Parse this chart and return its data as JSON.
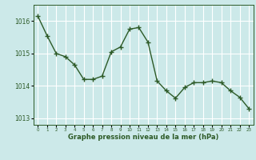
{
  "x": [
    0,
    1,
    2,
    3,
    4,
    5,
    6,
    7,
    8,
    9,
    10,
    11,
    12,
    13,
    14,
    15,
    16,
    17,
    18,
    19,
    20,
    21,
    22,
    23
  ],
  "y": [
    1016.15,
    1015.55,
    1015.0,
    1014.9,
    1014.65,
    1014.2,
    1014.2,
    1014.3,
    1015.05,
    1015.2,
    1015.75,
    1015.8,
    1015.35,
    1014.15,
    1013.85,
    1013.62,
    1013.95,
    1014.1,
    1014.1,
    1014.15,
    1014.1,
    1013.85,
    1013.65,
    1013.3
  ],
  "line_color": "#2d5a27",
  "marker_color": "#2d5a27",
  "bg_color": "#cce9e9",
  "grid_color": "#ffffff",
  "tick_label_color": "#2d5a27",
  "xlabel": "Graphe pression niveau de la mer (hPa)",
  "xlabel_color": "#2d5a27",
  "ylim": [
    1012.8,
    1016.5
  ],
  "yticks": [
    1013,
    1014,
    1015,
    1016
  ],
  "xlim": [
    -0.5,
    23.5
  ],
  "grid_major_color": "#ccdddd",
  "grid_minor_color": "#ddeaea"
}
